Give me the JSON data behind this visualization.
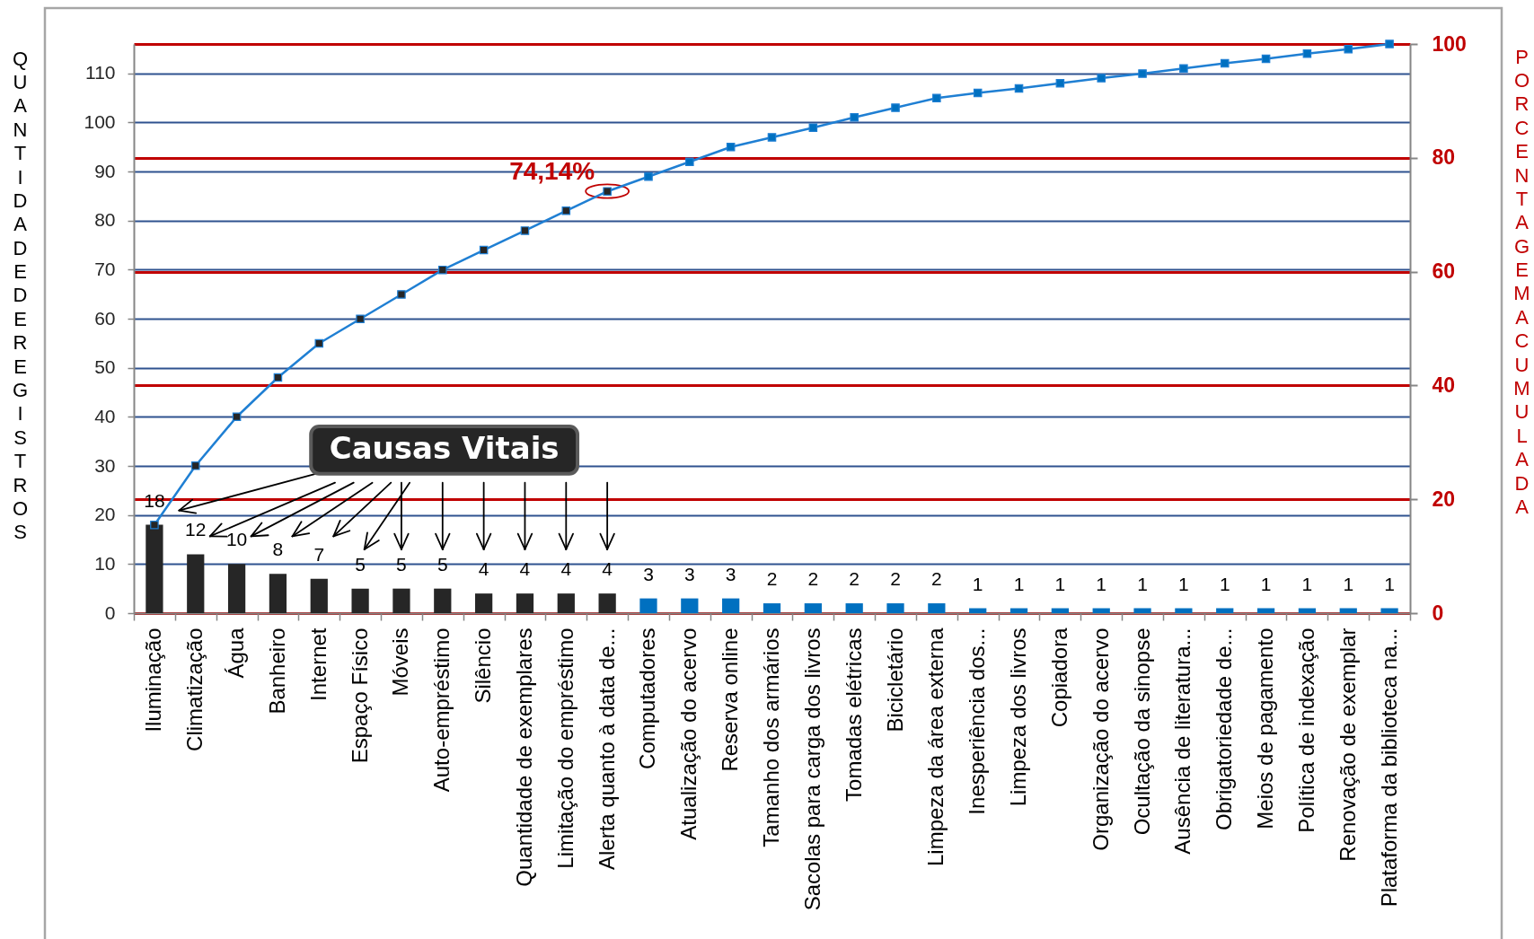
{
  "chart_data": {
    "type": "bar",
    "categories": [
      "Iluminação",
      "Climatização",
      "Água",
      "Banheiro",
      "Internet",
      "Espaço Físico",
      "Móveis",
      "Auto-empréstimo",
      "Silêncio",
      "Quantidade de exemplares",
      "Limitação do empréstimo",
      "Alerta quanto à data de...",
      "Computadores",
      "Atualização do acervo",
      "Reserva online",
      "Tamanho dos armários",
      "Sacolas para carga dos livros",
      "Tomadas elétricas",
      "Bicicletário",
      "Limpeza da área externa",
      "Inesperiência dos...",
      "Limpeza dos livros",
      "Copiadora",
      "Organização do acervo",
      "Ocultação da sinopse",
      "Ausência de literatura...",
      "Obrigatoriedade de...",
      "Meios de pagamento",
      "Política de indexação",
      "Renovação de exemplar",
      "Plataforma da biblioteca na..."
    ],
    "series": [
      {
        "colors": [
          "#262626",
          "#262626",
          "#262626",
          "#262626",
          "#262626",
          "#262626",
          "#262626",
          "#262626",
          "#262626",
          "#262626",
          "#262626",
          "#262626",
          "#0070c0",
          "#0070c0",
          "#0070c0",
          "#0070c0",
          "#0070c0",
          "#0070c0",
          "#0070c0",
          "#0070c0",
          "#0070c0",
          "#0070c0",
          "#0070c0",
          "#0070c0",
          "#0070c0",
          "#0070c0",
          "#0070c0",
          "#0070c0",
          "#0070c0",
          "#0070c0",
          "#0070c0"
        ],
        "values": [
          18,
          12,
          10,
          8,
          7,
          5,
          5,
          5,
          4,
          4,
          4,
          4,
          3,
          3,
          3,
          2,
          2,
          2,
          2,
          2,
          1,
          1,
          1,
          1,
          1,
          1,
          1,
          1,
          1,
          1,
          1
        ],
        "value_labels": [
          "18",
          "12",
          "10",
          "8",
          "7",
          "5",
          "5",
          "5",
          "4",
          "4",
          "4",
          "4",
          "3",
          "3",
          "3",
          "2",
          "2",
          "2",
          "2",
          "2",
          "1",
          "1",
          "1",
          "1",
          "1",
          "1",
          "1",
          "1",
          "1",
          "1",
          "1"
        ]
      },
      {
        "type": "line",
        "axis": "y2",
        "color": "#1f7fd3",
        "values": [
          15.5,
          25.9,
          34.5,
          41.4,
          47.4,
          51.7,
          56.0,
          60.3,
          63.8,
          67.2,
          70.7,
          74.1,
          76.7,
          79.3,
          81.9,
          83.6,
          85.3,
          87.1,
          88.8,
          90.5,
          91.4,
          92.2,
          93.1,
          94.0,
          94.8,
          95.7,
          96.6,
          97.4,
          98.3,
          99.1,
          100
        ]
      }
    ],
    "ylabel": "QUANTIDADE DE REGISTROS",
    "y2label": "PORCENTAGEM ACUMULADA",
    "ylim": [
      0,
      116
    ],
    "yticks": [
      0,
      10,
      20,
      30,
      40,
      50,
      60,
      70,
      80,
      90,
      100,
      110
    ],
    "y2lim": [
      0,
      100
    ],
    "y2ticks": [
      0,
      20,
      40,
      60,
      80,
      100
    ],
    "grid": true,
    "marker": "square",
    "annotations": [
      {
        "text": "74,14%",
        "x": "Alerta quanto à data de...",
        "y": 86
      },
      "Causas Vitais"
    ]
  }
}
